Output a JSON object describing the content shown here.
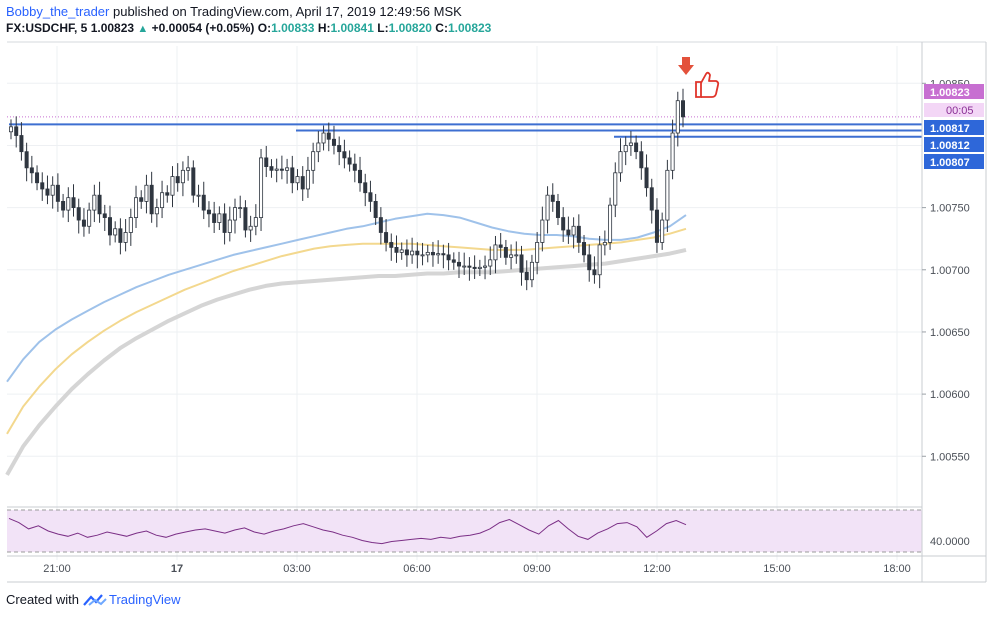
{
  "header": {
    "author": "Bobby_the_trader",
    "published_text": "published on TradingView.com, April 17, 2019 12:49:56 MSK",
    "symbol": "FX:USDCHF, 5",
    "last": "1.00823",
    "change": "+0.00054 (+0.05%)",
    "o_label": "O:",
    "o_value": "1.00833",
    "h_label": "H:",
    "h_value": "1.00841",
    "l_label": "L:",
    "l_value": "1.00820",
    "c_label": "C:",
    "c_value": "1.00823"
  },
  "footer": {
    "created_with": "Created with",
    "brand": "TradingView"
  },
  "colors": {
    "up": "#2f3640",
    "down": "#2f3640",
    "sma_fast": "#9fc2ea",
    "sma_mid": "#f3d88e",
    "sma_slow": "#d5d5d5",
    "levels": "#3d6fd1",
    "rsi_line": "#7b2f86",
    "rsi_fill": "#f2e3f7",
    "price_badge": "#c76fd1",
    "level_badge": "#2e67d9",
    "arrow": "#e3513b"
  },
  "badges": {
    "price": "1.00823",
    "timer": "00:05",
    "levels": [
      "1.00817",
      "1.00812",
      "1.00807"
    ]
  },
  "icons": [
    "arrow-down-icon",
    "thumbs-up-icon",
    "tradingview-logo-icon"
  ],
  "chart_data": {
    "type": "candlestick",
    "y_ticks": [
      "1.00850",
      "1.00750",
      "1.00700",
      "1.00650",
      "1.00600",
      "1.00550"
    ],
    "x_ticks": [
      "21:00",
      "17",
      "03:00",
      "06:00",
      "09:00",
      "12:00",
      "15:00",
      "18:00"
    ],
    "ylim": [
      1.0051,
      1.0088
    ],
    "levels": [
      1.00817,
      1.00812,
      1.00807
    ],
    "candles_close": [
      1.00815,
      1.00808,
      1.00795,
      1.00782,
      1.00778,
      1.0077,
      1.00765,
      1.0076,
      1.00768,
      1.00755,
      1.00748,
      1.00758,
      1.0075,
      1.0074,
      1.00735,
      1.00748,
      1.0076,
      1.00745,
      1.00742,
      1.00728,
      1.00733,
      1.00722,
      1.0073,
      1.00742,
      1.00758,
      1.00755,
      1.00768,
      1.00745,
      1.0075,
      1.00762,
      1.0076,
      1.00775,
      1.0077,
      1.0078,
      1.00782,
      1.0076,
      1.0076,
      1.00748,
      1.00745,
      1.00738,
      1.00745,
      1.0073,
      1.0074,
      1.0075,
      1.0075,
      1.00732,
      1.00735,
      1.00742,
      1.0079,
      1.00783,
      1.0078,
      1.00781,
      1.0078,
      1.00782,
      1.0077,
      1.00775,
      1.00765,
      1.0078,
      1.00795,
      1.00802,
      1.0081,
      1.00805,
      1.008,
      1.00795,
      1.0079,
      1.00785,
      1.0078,
      1.0077,
      1.00762,
      1.00755,
      1.00742,
      1.0073,
      1.00722,
      1.00718,
      1.00714,
      1.00716,
      1.00712,
      1.00715,
      1.00712,
      1.00712,
      1.00714,
      1.00712,
      1.00713,
      1.00712,
      1.00708,
      1.00706,
      1.00703,
      1.00703,
      1.00702,
      1.00701,
      1.00702,
      1.00703,
      1.00708,
      1.0072,
      1.00718,
      1.0071,
      1.00712,
      1.00712,
      1.00698,
      1.00692,
      1.00706,
      1.00722,
      1.0074,
      1.0076,
      1.00755,
      1.00742,
      1.00732,
      1.00728,
      1.00735,
      1.00722,
      1.00712,
      1.007,
      1.00696,
      1.0072,
      1.00722,
      1.00752,
      1.00778,
      1.00795,
      1.008,
      1.00802,
      1.00795,
      1.00782,
      1.00766,
      1.00748,
      1.00722,
      1.0074,
      1.0078,
      1.0081,
      1.00836,
      1.00823
    ],
    "sma_fast": [
      1.0061,
      1.00628,
      1.00642,
      1.00652,
      1.0066,
      1.00667,
      1.00674,
      1.0068,
      1.00686,
      1.00691,
      1.00696,
      1.007,
      1.00704,
      1.00708,
      1.00712,
      1.00715,
      1.00718,
      1.00721,
      1.00724,
      1.00727,
      1.0073,
      1.00733,
      1.00735,
      1.00738,
      1.00741,
      1.00743,
      1.00745,
      1.00744,
      1.00742,
      1.00738,
      1.00734,
      1.00731,
      1.00729,
      1.00728,
      1.00728,
      1.00727,
      1.00725,
      1.00724,
      1.00724,
      1.00726,
      1.0073,
      1.00735,
      1.00744
    ],
    "sma_mid": [
      1.00568,
      1.0059,
      1.00606,
      1.0062,
      1.00632,
      1.00642,
      1.00651,
      1.00659,
      1.00666,
      1.00672,
      1.00678,
      1.00684,
      1.00689,
      1.00694,
      1.00699,
      1.00703,
      1.00707,
      1.00711,
      1.00714,
      1.00717,
      1.00719,
      1.0072,
      1.00721,
      1.00721,
      1.00721,
      1.00721,
      1.0072,
      1.00719,
      1.00718,
      1.00717,
      1.00716,
      1.00716,
      1.00716,
      1.00717,
      1.00718,
      1.00719,
      1.0072,
      1.00721,
      1.00722,
      1.00724,
      1.00726,
      1.00729,
      1.00733
    ],
    "sma_slow": [
      1.00535,
      1.00558,
      1.00575,
      1.0059,
      1.00604,
      1.00616,
      1.00627,
      1.00637,
      1.00645,
      1.00652,
      1.00659,
      1.00665,
      1.00671,
      1.00676,
      1.0068,
      1.00684,
      1.00687,
      1.00689,
      1.0069,
      1.00691,
      1.00692,
      1.00693,
      1.00694,
      1.00695,
      1.00695,
      1.00696,
      1.00697,
      1.00697,
      1.00698,
      1.00698,
      1.00698,
      1.00699,
      1.007,
      1.00701,
      1.00702,
      1.00703,
      1.00704,
      1.00705,
      1.00707,
      1.00709,
      1.00711,
      1.00713,
      1.00716
    ],
    "rsi": {
      "tick": "40.0000",
      "values": [
        62,
        58,
        52,
        55,
        50,
        47,
        45,
        48,
        44,
        46,
        49,
        47,
        45,
        48,
        50,
        46,
        44,
        47,
        49,
        51,
        52,
        50,
        48,
        51,
        53,
        49,
        47,
        50,
        52,
        55,
        57,
        54,
        51,
        49,
        46,
        44,
        41,
        39,
        38,
        40,
        41,
        42,
        43,
        42,
        44,
        43,
        45,
        46,
        48,
        52,
        58,
        61,
        56,
        51,
        47,
        55,
        60,
        52,
        45,
        42,
        48,
        52,
        57,
        58,
        54,
        44,
        50,
        57,
        60,
        56
      ]
    }
  }
}
